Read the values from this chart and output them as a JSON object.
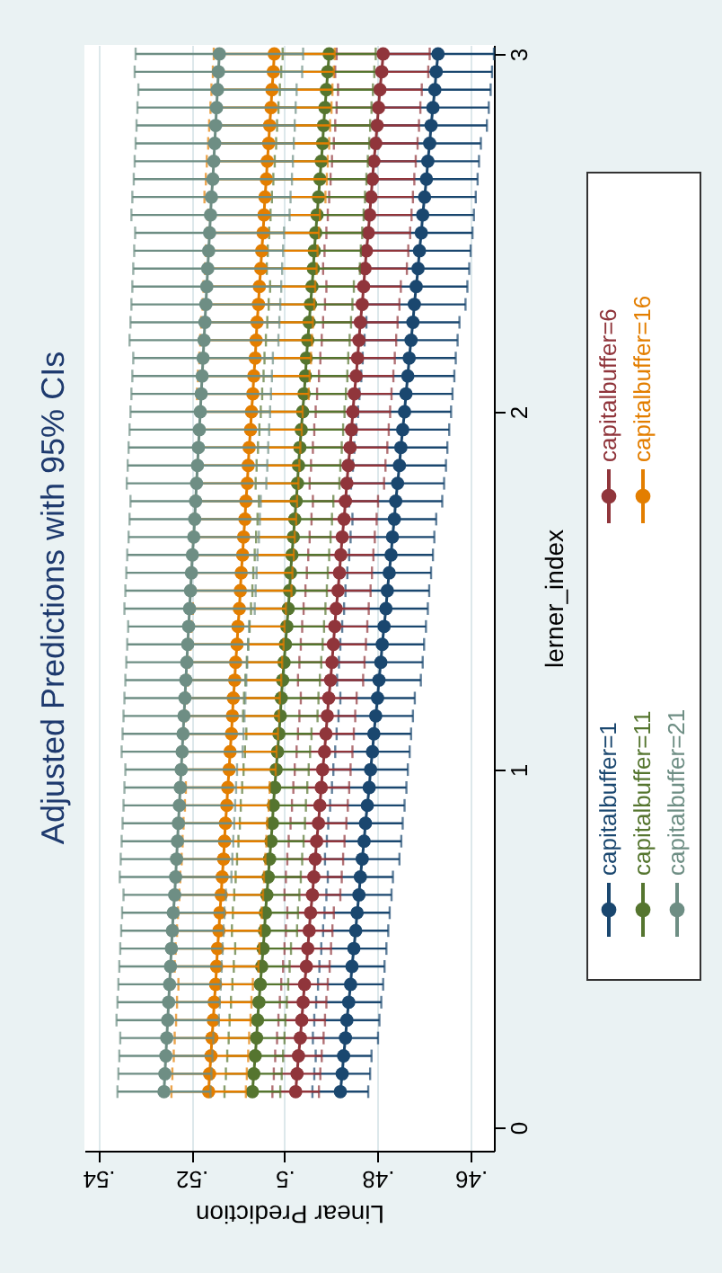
{
  "chart_data": {
    "type": "line",
    "title": "Adjusted Predictions with 95% CIs",
    "xlabel": "Linear Prediction",
    "ylabel": "lerner_index",
    "xlim": [
      0.543,
      0.455
    ],
    "xticks": [
      {
        "value": 0.54,
        "label": ".54"
      },
      {
        "value": 0.52,
        "label": ".52"
      },
      {
        "value": 0.5,
        "label": ".5"
      },
      {
        "value": 0.48,
        "label": ".48"
      },
      {
        "value": 0.46,
        "label": ".46"
      }
    ],
    "ylim": [
      -0.065,
      3.025
    ],
    "yticks": [
      0,
      1,
      2,
      3
    ],
    "grid": "x",
    "legend": "right",
    "marker": "circle",
    "line_style": "solid",
    "series": [
      {
        "name": "capitalbuffer=1",
        "color": "#1a476f",
        "x": [
          0.488,
          0.4876,
          0.4873,
          0.4869,
          0.4866,
          0.4862,
          0.4858,
          0.4855,
          0.4851,
          0.4847,
          0.4844,
          0.484,
          0.4837,
          0.4833,
          0.4829,
          0.4826,
          0.4822,
          0.4818,
          0.4815,
          0.4811,
          0.4808,
          0.4804,
          0.48,
          0.4797,
          0.4793,
          0.479,
          0.4786,
          0.4782,
          0.4779,
          0.4775,
          0.4771,
          0.4768,
          0.4764,
          0.4761,
          0.4757,
          0.4753,
          0.475,
          0.4746,
          0.4742,
          0.4739,
          0.4735,
          0.4732,
          0.4728,
          0.4724,
          0.4721,
          0.4717,
          0.4713,
          0.471,
          0.4706,
          0.4703,
          0.4699,
          0.4695,
          0.4692,
          0.4688,
          0.4685,
          0.4681,
          0.4677,
          0.4674,
          0.467
        ],
        "values": [
          0.1,
          0.15,
          0.2,
          0.25,
          0.3,
          0.35,
          0.4,
          0.45,
          0.5,
          0.55,
          0.6,
          0.65,
          0.7,
          0.75,
          0.8,
          0.85,
          0.9,
          0.95,
          1,
          1.05,
          1.1,
          1.15,
          1.2,
          1.25,
          1.3,
          1.35,
          1.4,
          1.45,
          1.5,
          1.55,
          1.6,
          1.65,
          1.7,
          1.75,
          1.8,
          1.85,
          1.9,
          1.95,
          2,
          2.05,
          2.1,
          2.15,
          2.2,
          2.25,
          2.3,
          2.35,
          2.4,
          2.45,
          2.5,
          2.55,
          2.6,
          2.65,
          2.7,
          2.75,
          2.8,
          2.85,
          2.9,
          2.95,
          3
        ],
        "xerrors": [
          0.006,
          0.006,
          0.006,
          0.007,
          0.007,
          0.007,
          0.007,
          0.007,
          0.007,
          0.007,
          0.007,
          0.007,
          0.007,
          0.008,
          0.008,
          0.008,
          0.008,
          0.008,
          0.008,
          0.008,
          0.008,
          0.008,
          0.008,
          0.009,
          0.009,
          0.009,
          0.009,
          0.009,
          0.009,
          0.009,
          0.009,
          0.009,
          0.009,
          0.01,
          0.01,
          0.01,
          0.01,
          0.01,
          0.01,
          0.01,
          0.01,
          0.01,
          0.01,
          0.01,
          0.011,
          0.011,
          0.011,
          0.011,
          0.011,
          0.011,
          0.011,
          0.011,
          0.011,
          0.011,
          0.012,
          0.012,
          0.012,
          0.012,
          0.012
        ]
      },
      {
        "name": "capitalbuffer=6",
        "color": "#90353b",
        "x": [
          0.4976,
          0.4973,
          0.497,
          0.4966,
          0.4963,
          0.496,
          0.4957,
          0.4953,
          0.495,
          0.4947,
          0.4944,
          0.494,
          0.4937,
          0.4934,
          0.4931,
          0.4927,
          0.4924,
          0.4921,
          0.4918,
          0.4914,
          0.4911,
          0.4908,
          0.4905,
          0.4901,
          0.4898,
          0.4895,
          0.4892,
          0.4889,
          0.4885,
          0.4882,
          0.4879,
          0.4876,
          0.4872,
          0.4869,
          0.4866,
          0.4863,
          0.4859,
          0.4856,
          0.4853,
          0.485,
          0.4846,
          0.4843,
          0.484,
          0.4837,
          0.4833,
          0.483,
          0.4827,
          0.4824,
          0.482,
          0.4817,
          0.4814,
          0.4811,
          0.4808,
          0.4804,
          0.4801,
          0.4798,
          0.4795,
          0.4791,
          0.4788
        ],
        "values": [
          0.1,
          0.15,
          0.2,
          0.25,
          0.3,
          0.35,
          0.4,
          0.45,
          0.5,
          0.55,
          0.6,
          0.65,
          0.7,
          0.75,
          0.8,
          0.85,
          0.9,
          0.95,
          1,
          1.05,
          1.1,
          1.15,
          1.2,
          1.25,
          1.3,
          1.35,
          1.4,
          1.45,
          1.5,
          1.55,
          1.6,
          1.65,
          1.7,
          1.75,
          1.8,
          1.85,
          1.9,
          1.95,
          2,
          2.05,
          2.1,
          2.15,
          2.2,
          2.25,
          2.3,
          2.35,
          2.4,
          2.45,
          2.5,
          2.55,
          2.6,
          2.65,
          2.7,
          2.75,
          2.8,
          2.85,
          2.9,
          2.95,
          3
        ],
        "xerrors": [
          0.005,
          0.005,
          0.005,
          0.005,
          0.005,
          0.005,
          0.005,
          0.005,
          0.005,
          0.005,
          0.005,
          0.006,
          0.006,
          0.006,
          0.006,
          0.006,
          0.006,
          0.006,
          0.006,
          0.006,
          0.006,
          0.006,
          0.006,
          0.007,
          0.007,
          0.007,
          0.007,
          0.007,
          0.007,
          0.007,
          0.007,
          0.007,
          0.007,
          0.007,
          0.008,
          0.008,
          0.008,
          0.008,
          0.008,
          0.008,
          0.008,
          0.008,
          0.008,
          0.008,
          0.008,
          0.008,
          0.009,
          0.009,
          0.009,
          0.009,
          0.009,
          0.009,
          0.009,
          0.009,
          0.009,
          0.009,
          0.009,
          0.01,
          0.01
        ]
      },
      {
        "name": "capitalbuffer=11",
        "color": "#55752f",
        "x": [
          0.5069,
          0.5066,
          0.5063,
          0.506,
          0.5058,
          0.5055,
          0.5052,
          0.5049,
          0.5046,
          0.5043,
          0.5041,
          0.5038,
          0.5035,
          0.5032,
          0.5029,
          0.5026,
          0.5024,
          0.5021,
          0.5018,
          0.5015,
          0.5012,
          0.5009,
          0.5007,
          0.5004,
          0.5001,
          0.4998,
          0.4995,
          0.4992,
          0.4989,
          0.4987,
          0.4984,
          0.4981,
          0.4978,
          0.4975,
          0.4972,
          0.497,
          0.4967,
          0.4964,
          0.4961,
          0.4958,
          0.4955,
          0.4953,
          0.495,
          0.4947,
          0.4944,
          0.4941,
          0.4938,
          0.4936,
          0.4933,
          0.493,
          0.4927,
          0.4924,
          0.4921,
          0.4918,
          0.4916,
          0.4913,
          0.491,
          0.4907,
          0.4904
        ],
        "values": [
          0.1,
          0.15,
          0.2,
          0.25,
          0.3,
          0.35,
          0.4,
          0.45,
          0.5,
          0.55,
          0.6,
          0.65,
          0.7,
          0.75,
          0.8,
          0.85,
          0.9,
          0.95,
          1,
          1.05,
          1.1,
          1.15,
          1.2,
          1.25,
          1.3,
          1.35,
          1.4,
          1.45,
          1.5,
          1.55,
          1.6,
          1.65,
          1.7,
          1.75,
          1.8,
          1.85,
          1.9,
          1.95,
          2,
          2.05,
          2.1,
          2.15,
          2.2,
          2.25,
          2.3,
          2.35,
          2.4,
          2.45,
          2.5,
          2.55,
          2.6,
          2.65,
          2.7,
          2.75,
          2.8,
          2.85,
          2.9,
          2.95,
          3
        ],
        "xerrors": [
          0.006,
          0.006,
          0.006,
          0.006,
          0.006,
          0.006,
          0.006,
          0.006,
          0.006,
          0.007,
          0.007,
          0.007,
          0.007,
          0.007,
          0.007,
          0.007,
          0.007,
          0.007,
          0.007,
          0.007,
          0.007,
          0.008,
          0.008,
          0.008,
          0.008,
          0.008,
          0.008,
          0.008,
          0.008,
          0.008,
          0.008,
          0.008,
          0.008,
          0.008,
          0.009,
          0.009,
          0.009,
          0.009,
          0.009,
          0.009,
          0.009,
          0.009,
          0.009,
          0.009,
          0.009,
          0.009,
          0.01,
          0.01,
          0.01,
          0.01,
          0.01,
          0.01,
          0.01,
          0.01,
          0.01,
          0.01,
          0.01,
          0.01,
          0.01
        ]
      },
      {
        "name": "capitalbuffer=16",
        "color": "#e37e00",
        "x": [
          0.5163,
          0.5161,
          0.5158,
          0.5156,
          0.5153,
          0.5151,
          0.5148,
          0.5146,
          0.5144,
          0.5141,
          0.5139,
          0.5136,
          0.5134,
          0.5131,
          0.5129,
          0.5127,
          0.5124,
          0.5122,
          0.5119,
          0.5117,
          0.5114,
          0.5112,
          0.511,
          0.5107,
          0.5105,
          0.5102,
          0.51,
          0.5097,
          0.5095,
          0.5093,
          0.509,
          0.5088,
          0.5085,
          0.5083,
          0.508,
          0.5078,
          0.5076,
          0.5073,
          0.5071,
          0.5068,
          0.5066,
          0.5063,
          0.5061,
          0.5059,
          0.5056,
          0.5054,
          0.5051,
          0.5049,
          0.5046,
          0.5044,
          0.5042,
          0.5039,
          0.5037,
          0.5034,
          0.5032,
          0.5029,
          0.5027,
          0.5024,
          0.5022
        ],
        "values": [
          0.1,
          0.15,
          0.2,
          0.25,
          0.3,
          0.35,
          0.4,
          0.45,
          0.5,
          0.55,
          0.6,
          0.65,
          0.7,
          0.75,
          0.8,
          0.85,
          0.9,
          0.95,
          1,
          1.05,
          1.1,
          1.15,
          1.2,
          1.25,
          1.3,
          1.35,
          1.4,
          1.45,
          1.5,
          1.55,
          1.6,
          1.65,
          1.7,
          1.75,
          1.8,
          1.85,
          1.9,
          1.95,
          2,
          2.05,
          2.1,
          2.15,
          2.2,
          2.25,
          2.3,
          2.35,
          2.4,
          2.45,
          2.5,
          2.55,
          2.6,
          2.65,
          2.7,
          2.75,
          2.8,
          2.85,
          2.9,
          2.95,
          3
        ],
        "xerrors": [
          0.008,
          0.008,
          0.008,
          0.008,
          0.008,
          0.008,
          0.008,
          0.009,
          0.009,
          0.009,
          0.009,
          0.009,
          0.009,
          0.009,
          0.009,
          0.009,
          0.009,
          0.009,
          0.01,
          0.01,
          0.01,
          0.01,
          0.01,
          0.01,
          0.01,
          0.01,
          0.01,
          0.01,
          0.011,
          0.011,
          0.011,
          0.011,
          0.011,
          0.011,
          0.011,
          0.011,
          0.011,
          0.011,
          0.011,
          0.012,
          0.012,
          0.012,
          0.012,
          0.012,
          0.012,
          0.012,
          0.012,
          0.012,
          0.012,
          0.012,
          0.013,
          0.013,
          0.013,
          0.013,
          0.013,
          0.013,
          0.013,
          0.013,
          0.013
        ]
      },
      {
        "name": "capitalbuffer=21",
        "color": "#6e8e84",
        "x": [
          0.5259,
          0.5257,
          0.5255,
          0.5253,
          0.5251,
          0.5249,
          0.5247,
          0.5245,
          0.5243,
          0.5241,
          0.5239,
          0.5236,
          0.5234,
          0.5232,
          0.523,
          0.5228,
          0.5226,
          0.5224,
          0.5222,
          0.522,
          0.5218,
          0.5216,
          0.5214,
          0.5212,
          0.521,
          0.5208,
          0.5206,
          0.5204,
          0.5202,
          0.52,
          0.5198,
          0.5195,
          0.5193,
          0.5191,
          0.5189,
          0.5187,
          0.5185,
          0.5183,
          0.5181,
          0.5179,
          0.5177,
          0.5175,
          0.5173,
          0.5171,
          0.5169,
          0.5167,
          0.5165,
          0.5163,
          0.5161,
          0.5159,
          0.5157,
          0.5154,
          0.5152,
          0.515,
          0.5148,
          0.5146,
          0.5144,
          0.5142,
          0.514
        ],
        "values": [
          0.1,
          0.15,
          0.2,
          0.25,
          0.3,
          0.35,
          0.4,
          0.45,
          0.5,
          0.55,
          0.6,
          0.65,
          0.7,
          0.75,
          0.8,
          0.85,
          0.9,
          0.95,
          1,
          1.05,
          1.1,
          1.15,
          1.2,
          1.25,
          1.3,
          1.35,
          1.4,
          1.45,
          1.5,
          1.55,
          1.6,
          1.65,
          1.7,
          1.75,
          1.8,
          1.85,
          1.9,
          1.95,
          2,
          2.05,
          2.1,
          2.15,
          2.2,
          2.25,
          2.3,
          2.35,
          2.4,
          2.45,
          2.5,
          2.55,
          2.6,
          2.65,
          2.7,
          2.75,
          2.8,
          2.85,
          2.9,
          2.95,
          3
        ],
        "xerrors": [
          0.01,
          0.01,
          0.01,
          0.01,
          0.011,
          0.011,
          0.011,
          0.011,
          0.011,
          0.011,
          0.011,
          0.011,
          0.012,
          0.012,
          0.012,
          0.012,
          0.012,
          0.012,
          0.012,
          0.013,
          0.013,
          0.013,
          0.013,
          0.013,
          0.013,
          0.013,
          0.013,
          0.014,
          0.014,
          0.014,
          0.014,
          0.014,
          0.014,
          0.014,
          0.015,
          0.015,
          0.015,
          0.015,
          0.015,
          0.015,
          0.015,
          0.015,
          0.016,
          0.016,
          0.016,
          0.016,
          0.016,
          0.016,
          0.016,
          0.017,
          0.017,
          0.017,
          0.017,
          0.017,
          0.017,
          0.017,
          0.017,
          0.018,
          0.018
        ]
      }
    ]
  }
}
